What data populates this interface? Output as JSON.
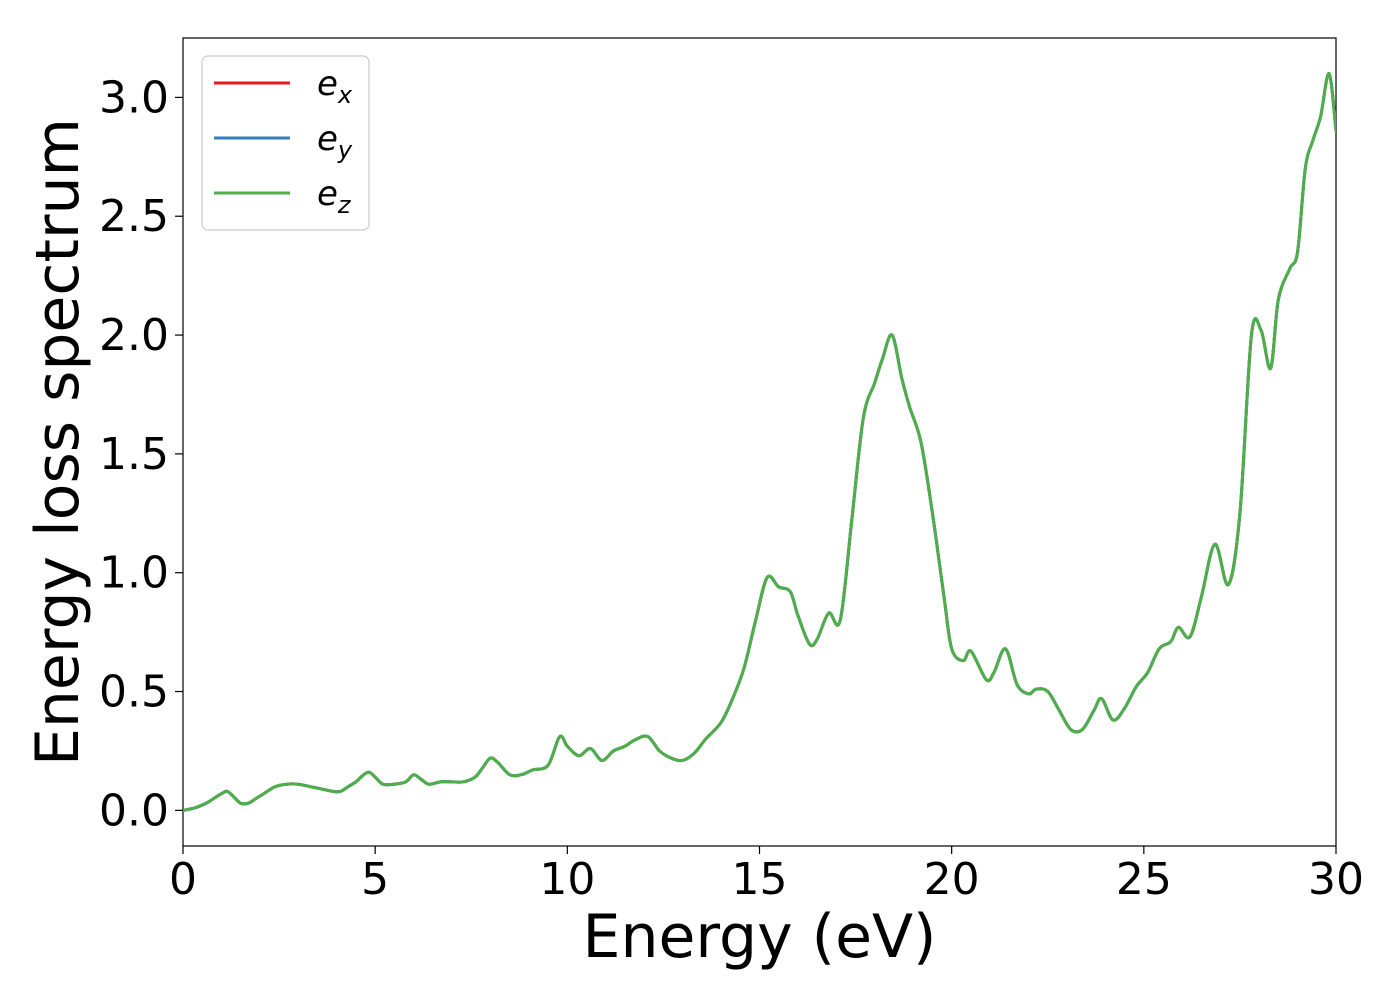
{
  "chart_data": {
    "type": "line",
    "title": "",
    "xlabel": "Energy (eV)",
    "ylabel": "Energy loss spectrum",
    "xlim": [
      0,
      30
    ],
    "ylim": [
      -0.15,
      3.25
    ],
    "xticks": [
      0,
      5,
      10,
      15,
      20,
      25,
      30
    ],
    "xtick_labels": [
      "0",
      "5",
      "10",
      "15",
      "20",
      "25",
      "30"
    ],
    "yticks": [
      0.0,
      0.5,
      1.0,
      1.5,
      2.0,
      2.5,
      3.0
    ],
    "ytick_labels": [
      "0.0",
      "0.5",
      "1.0",
      "1.5",
      "2.0",
      "2.5",
      "3.0"
    ],
    "grid": false,
    "legend_position": "top-left",
    "x": [
      0,
      0.3,
      0.6,
      0.8,
      1.0,
      1.15,
      1.3,
      1.5,
      1.7,
      1.9,
      2.1,
      2.4,
      2.7,
      3.0,
      3.3,
      3.6,
      3.9,
      4.1,
      4.3,
      4.5,
      4.7,
      4.85,
      5.0,
      5.2,
      5.5,
      5.8,
      6.0,
      6.2,
      6.4,
      6.7,
      7.0,
      7.3,
      7.6,
      7.8,
      8.0,
      8.2,
      8.5,
      8.8,
      9.1,
      9.5,
      9.8,
      10.0,
      10.3,
      10.6,
      10.9,
      11.2,
      11.5,
      11.8,
      12.1,
      12.4,
      12.7,
      13.0,
      13.3,
      13.6,
      14.0,
      14.3,
      14.6,
      14.9,
      15.2,
      15.5,
      15.8,
      16.0,
      16.3,
      16.5,
      16.8,
      17.1,
      17.4,
      17.7,
      18.0,
      18.2,
      18.45,
      18.7,
      18.9,
      19.2,
      19.5,
      19.8,
      20.0,
      20.3,
      20.5,
      20.9,
      21.1,
      21.4,
      21.7,
      22.0,
      22.2,
      22.5,
      22.8,
      23.1,
      23.4,
      23.7,
      23.9,
      24.2,
      24.5,
      24.8,
      25.1,
      25.4,
      25.7,
      25.9,
      26.2,
      26.5,
      26.85,
      27.2,
      27.5,
      27.8,
      28.05,
      28.3,
      28.5,
      28.8,
      29.0,
      29.2,
      29.4,
      29.6,
      29.82,
      30.0
    ],
    "series": [
      {
        "name": "e_x",
        "label_base": "e",
        "label_sub": "x",
        "color": "#e41a1c",
        "values": [
          0.0,
          0.01,
          0.03,
          0.05,
          0.07,
          0.08,
          0.06,
          0.03,
          0.03,
          0.05,
          0.07,
          0.1,
          0.11,
          0.11,
          0.1,
          0.09,
          0.08,
          0.08,
          0.1,
          0.12,
          0.15,
          0.16,
          0.14,
          0.11,
          0.11,
          0.12,
          0.15,
          0.13,
          0.11,
          0.12,
          0.12,
          0.12,
          0.14,
          0.18,
          0.22,
          0.2,
          0.15,
          0.15,
          0.17,
          0.19,
          0.31,
          0.27,
          0.23,
          0.26,
          0.21,
          0.25,
          0.27,
          0.3,
          0.31,
          0.25,
          0.22,
          0.21,
          0.24,
          0.3,
          0.37,
          0.47,
          0.6,
          0.8,
          0.98,
          0.94,
          0.92,
          0.82,
          0.7,
          0.72,
          0.83,
          0.8,
          1.22,
          1.65,
          1.8,
          1.9,
          2.0,
          1.82,
          1.7,
          1.55,
          1.25,
          0.9,
          0.68,
          0.63,
          0.67,
          0.55,
          0.58,
          0.68,
          0.53,
          0.49,
          0.51,
          0.5,
          0.42,
          0.34,
          0.34,
          0.42,
          0.47,
          0.38,
          0.43,
          0.52,
          0.58,
          0.68,
          0.71,
          0.77,
          0.73,
          0.9,
          1.12,
          0.95,
          1.25,
          2.0,
          2.02,
          1.86,
          2.15,
          2.28,
          2.35,
          2.7,
          2.82,
          2.92,
          3.1,
          2.86
        ]
      },
      {
        "name": "e_y",
        "label_base": "e",
        "label_sub": "y",
        "color": "#377eb8",
        "values": [
          0.0,
          0.01,
          0.03,
          0.05,
          0.07,
          0.08,
          0.06,
          0.03,
          0.03,
          0.05,
          0.07,
          0.1,
          0.11,
          0.11,
          0.1,
          0.09,
          0.08,
          0.08,
          0.1,
          0.12,
          0.15,
          0.16,
          0.14,
          0.11,
          0.11,
          0.12,
          0.15,
          0.13,
          0.11,
          0.12,
          0.12,
          0.12,
          0.14,
          0.18,
          0.22,
          0.2,
          0.15,
          0.15,
          0.17,
          0.19,
          0.31,
          0.27,
          0.23,
          0.26,
          0.21,
          0.25,
          0.27,
          0.3,
          0.31,
          0.25,
          0.22,
          0.21,
          0.24,
          0.3,
          0.37,
          0.47,
          0.6,
          0.8,
          0.98,
          0.94,
          0.92,
          0.82,
          0.7,
          0.72,
          0.83,
          0.8,
          1.22,
          1.65,
          1.8,
          1.9,
          2.0,
          1.82,
          1.7,
          1.55,
          1.25,
          0.9,
          0.68,
          0.63,
          0.67,
          0.55,
          0.58,
          0.68,
          0.53,
          0.49,
          0.51,
          0.5,
          0.42,
          0.34,
          0.34,
          0.42,
          0.47,
          0.38,
          0.43,
          0.52,
          0.58,
          0.68,
          0.71,
          0.77,
          0.73,
          0.9,
          1.12,
          0.95,
          1.25,
          2.0,
          2.02,
          1.86,
          2.15,
          2.28,
          2.35,
          2.7,
          2.82,
          2.92,
          3.1,
          2.86
        ]
      },
      {
        "name": "e_z",
        "label_base": "e",
        "label_sub": "z",
        "color": "#4daf4a",
        "values": [
          0.0,
          0.01,
          0.03,
          0.05,
          0.07,
          0.08,
          0.06,
          0.03,
          0.03,
          0.05,
          0.07,
          0.1,
          0.11,
          0.11,
          0.1,
          0.09,
          0.08,
          0.08,
          0.1,
          0.12,
          0.15,
          0.16,
          0.14,
          0.11,
          0.11,
          0.12,
          0.15,
          0.13,
          0.11,
          0.12,
          0.12,
          0.12,
          0.14,
          0.18,
          0.22,
          0.2,
          0.15,
          0.15,
          0.17,
          0.19,
          0.31,
          0.27,
          0.23,
          0.26,
          0.21,
          0.25,
          0.27,
          0.3,
          0.31,
          0.25,
          0.22,
          0.21,
          0.24,
          0.3,
          0.37,
          0.47,
          0.6,
          0.8,
          0.98,
          0.94,
          0.92,
          0.82,
          0.7,
          0.72,
          0.83,
          0.8,
          1.22,
          1.65,
          1.8,
          1.9,
          2.0,
          1.82,
          1.7,
          1.55,
          1.25,
          0.9,
          0.68,
          0.63,
          0.67,
          0.55,
          0.58,
          0.68,
          0.53,
          0.49,
          0.51,
          0.5,
          0.42,
          0.34,
          0.34,
          0.42,
          0.47,
          0.38,
          0.43,
          0.52,
          0.58,
          0.68,
          0.71,
          0.77,
          0.73,
          0.9,
          1.12,
          0.95,
          1.25,
          2.0,
          2.02,
          1.86,
          2.15,
          2.28,
          2.35,
          2.7,
          2.82,
          2.92,
          3.1,
          2.86
        ]
      }
    ]
  }
}
